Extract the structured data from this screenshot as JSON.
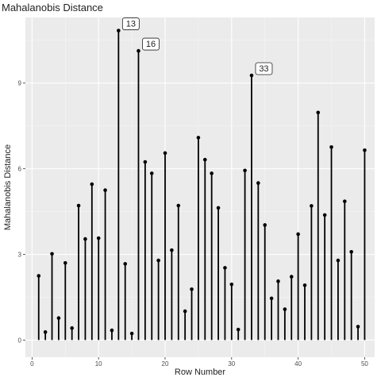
{
  "chart_data": {
    "type": "lollipop",
    "title": "Mahalanobis Distance",
    "xlabel": "Row Number",
    "ylabel": "Mahalanobis Distance",
    "xlim": [
      -1,
      51.5
    ],
    "ylim": [
      -0.6,
      11.3
    ],
    "x_ticks": [
      0,
      10,
      20,
      30,
      40,
      50
    ],
    "y_ticks": [
      0,
      3,
      6,
      9
    ],
    "grid": true,
    "colors": {
      "panel": "#ebebeb",
      "grid_major": "#ffffff",
      "grid_minor": "#f5f5f5",
      "mark": "#000000",
      "tick": "#333333"
    },
    "x": [
      1,
      2,
      3,
      4,
      5,
      6,
      7,
      8,
      9,
      10,
      11,
      12,
      13,
      14,
      15,
      16,
      17,
      18,
      19,
      20,
      21,
      22,
      23,
      24,
      25,
      26,
      27,
      28,
      29,
      30,
      31,
      32,
      33,
      34,
      35,
      36,
      37,
      38,
      39,
      40,
      41,
      42,
      43,
      44,
      45,
      46,
      47,
      48,
      49,
      50
    ],
    "values": [
      2.25,
      0.28,
      3.02,
      0.77,
      2.7,
      0.42,
      4.71,
      3.54,
      5.46,
      3.57,
      5.25,
      0.34,
      10.84,
      2.67,
      0.23,
      10.13,
      6.24,
      5.84,
      2.79,
      6.55,
      3.15,
      4.71,
      1.01,
      1.78,
      7.09,
      6.32,
      5.84,
      4.63,
      2.53,
      1.95,
      0.37,
      5.94,
      9.27,
      5.5,
      4.03,
      1.46,
      2.06,
      1.08,
      2.22,
      3.71,
      1.92,
      4.7,
      7.97,
      4.38,
      6.76,
      2.79,
      4.86,
      3.09,
      0.47,
      6.65
    ],
    "annotations": [
      {
        "x": 13,
        "label": "13"
      },
      {
        "x": 16,
        "label": "16"
      },
      {
        "x": 33,
        "label": "33"
      }
    ]
  }
}
